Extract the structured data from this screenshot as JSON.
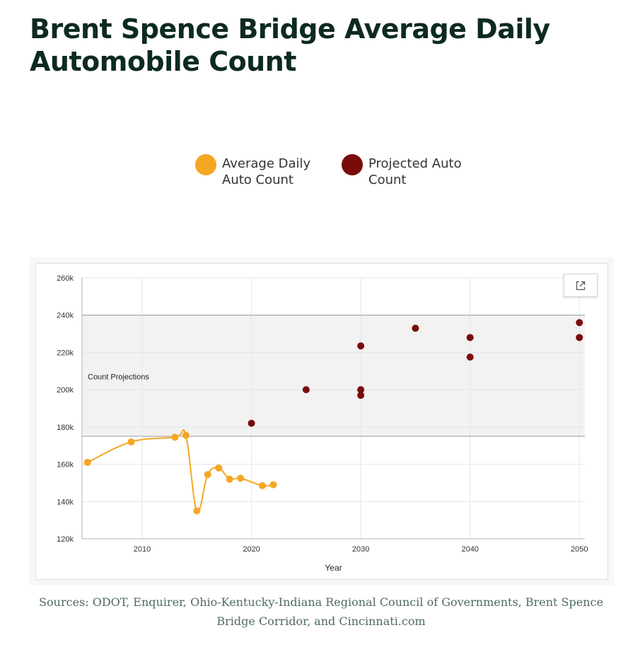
{
  "title": "Brent Spence Bridge Average Daily Automobile Count",
  "legend": [
    {
      "label": "Average Daily Auto Count",
      "color": "#f5a623"
    },
    {
      "label": "Projected Auto Count",
      "color": "#7a0a0a"
    }
  ],
  "source": "Sources: ODOT, Enquirer, Ohio-Kentucky-Indiana Regional Council of Governments, Brent Spence Bridge Corridor, and Cincinnati.com",
  "expand_icon": "external-link-icon",
  "chart_data": {
    "type": "scatter",
    "title": "",
    "xlabel": "Year",
    "ylabel": "",
    "xlim": [
      2004.5,
      2050.5
    ],
    "ylim": [
      120000,
      260000
    ],
    "x_ticks": [
      2010,
      2020,
      2030,
      2040,
      2050
    ],
    "x_tick_labels": [
      "2010",
      "2020",
      "2030",
      "2040",
      "2050"
    ],
    "y_ticks": [
      120000,
      140000,
      160000,
      180000,
      200000,
      220000,
      240000,
      260000
    ],
    "y_tick_labels": [
      "120k",
      "140k",
      "160k",
      "180k",
      "200k",
      "220k",
      "240k",
      "260k"
    ],
    "grid": true,
    "band": {
      "label": "Count Projections",
      "from": 175000,
      "to": 240000
    },
    "series": [
      {
        "name": "Average Daily Auto Count",
        "type": "line",
        "color": "#f5a623",
        "x": [
          2005,
          2009,
          2013,
          2014,
          2015,
          2016,
          2017,
          2018,
          2019,
          2021,
          2022
        ],
        "values": [
          161000,
          172000,
          174500,
          175500,
          135000,
          154500,
          158000,
          152000,
          152500,
          148500,
          149000
        ]
      },
      {
        "name": "Projected Auto Count",
        "type": "scatter",
        "color": "#7a0a0a",
        "x": [
          2020,
          2025,
          2030,
          2030,
          2030,
          2035,
          2040,
          2040,
          2050,
          2050
        ],
        "values": [
          182000,
          200000,
          223500,
          200000,
          197000,
          233000,
          228000,
          217500,
          236000,
          228000
        ]
      }
    ]
  }
}
